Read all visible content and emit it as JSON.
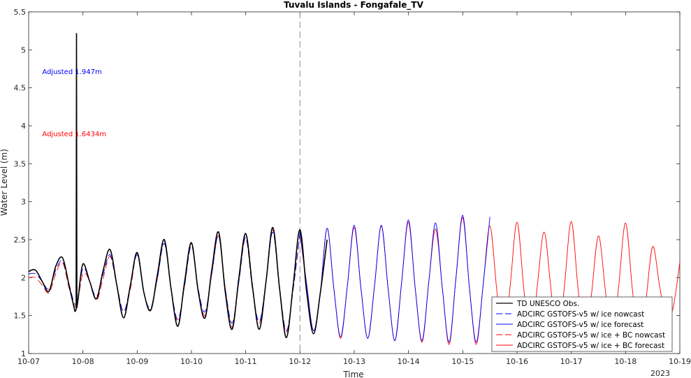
{
  "chart_data": {
    "type": "line",
    "title": "Tuvalu Islands - Fongafale_TV",
    "xlabel": "Time",
    "ylabel": "Water Level (m)",
    "year_label": "2023",
    "xlim": [
      "2023-10-07 00:00",
      "2023-10-19 00:00"
    ],
    "ylim": [
      1,
      5.5
    ],
    "x_ticks": [
      "10-07",
      "10-08",
      "10-09",
      "10-10",
      "10-11",
      "10-12",
      "10-13",
      "10-14",
      "10-15",
      "10-16",
      "10-17",
      "10-18",
      "10-19"
    ],
    "y_ticks": [
      "1",
      "1.5",
      "2",
      "2.5",
      "3",
      "3.5",
      "4",
      "4.5",
      "5",
      "5.5"
    ],
    "nowcast_forecast_boundary": "2023-10-12 00:00",
    "grid": false,
    "legend_placement": "bottom-right",
    "annotations": [
      {
        "text": "Adjusted 1.947m",
        "color": "#0000ff",
        "x": "2023-10-07 06:00",
        "y": 4.68
      },
      {
        "text": "Adjusted 1.6434m",
        "color": "#ff0000",
        "x": "2023-10-07 06:00",
        "y": 3.86
      }
    ],
    "series": [
      {
        "name": "TD UNESCO Obs.",
        "color": "#000000",
        "dash": "solid",
        "x": [
          "2023-10-07 00:00",
          "2023-10-07 03:00",
          "2023-10-07 06:00",
          "2023-10-07 09:00",
          "2023-10-07 12:00",
          "2023-10-07 15:00",
          "2023-10-07 18:00",
          "2023-10-07 20:30",
          "2023-10-07 21:00",
          "2023-10-07 21:10",
          "2023-10-07 21:20",
          "2023-10-07 22:00",
          "2023-10-08 00:00",
          "2023-10-08 03:00",
          "2023-10-08 06:00",
          "2023-10-08 09:00",
          "2023-10-08 12:00",
          "2023-10-08 15:00",
          "2023-10-08 18:00",
          "2023-10-08 21:00",
          "2023-10-09 00:00",
          "2023-10-09 03:00",
          "2023-10-09 06:00",
          "2023-10-09 09:00",
          "2023-10-09 12:00",
          "2023-10-09 15:00",
          "2023-10-09 18:00",
          "2023-10-09 21:00",
          "2023-10-10 00:00",
          "2023-10-10 03:00",
          "2023-10-10 06:00",
          "2023-10-10 09:00",
          "2023-10-10 12:00",
          "2023-10-10 15:00",
          "2023-10-10 18:00",
          "2023-10-10 21:00",
          "2023-10-11 00:00",
          "2023-10-11 03:00",
          "2023-10-11 06:00",
          "2023-10-11 09:00",
          "2023-10-11 12:00",
          "2023-10-11 15:00",
          "2023-10-11 18:00",
          "2023-10-11 21:00",
          "2023-10-12 00:00",
          "2023-10-12 03:00",
          "2023-10-12 06:00",
          "2023-10-12 09:00",
          "2023-10-12 12:00"
        ],
        "y": [
          2.08,
          2.1,
          1.95,
          1.82,
          2.15,
          2.26,
          1.88,
          1.55,
          1.58,
          5.22,
          1.6,
          1.75,
          2.18,
          1.95,
          1.72,
          2.1,
          2.37,
          1.9,
          1.47,
          1.9,
          2.33,
          1.8,
          1.57,
          2.05,
          2.5,
          1.85,
          1.36,
          1.95,
          2.46,
          1.82,
          1.47,
          2.1,
          2.6,
          1.8,
          1.32,
          2.0,
          2.58,
          1.88,
          1.32,
          1.95,
          2.66,
          1.85,
          1.21,
          1.9,
          2.63,
          1.8,
          1.26,
          1.8,
          2.5
        ]
      },
      {
        "name": "ADCIRC GSTOFS-v5 w/ ice nowcast",
        "color": "#0000ff",
        "dash": "long-dash",
        "x": [
          "2023-10-07 00:00",
          "2023-10-07 03:00",
          "2023-10-07 06:00",
          "2023-10-07 09:00",
          "2023-10-07 12:00",
          "2023-10-07 15:00",
          "2023-10-07 18:00",
          "2023-10-07 21:00",
          "2023-10-08 00:00",
          "2023-10-08 03:00",
          "2023-10-08 06:00",
          "2023-10-08 09:00",
          "2023-10-08 12:00",
          "2023-10-08 15:00",
          "2023-10-08 18:00",
          "2023-10-08 21:00",
          "2023-10-09 00:00",
          "2023-10-09 03:00",
          "2023-10-09 06:00",
          "2023-10-09 09:00",
          "2023-10-09 12:00",
          "2023-10-09 15:00",
          "2023-10-09 18:00",
          "2023-10-09 21:00",
          "2023-10-10 00:00",
          "2023-10-10 03:00",
          "2023-10-10 06:00",
          "2023-10-10 09:00",
          "2023-10-10 12:00",
          "2023-10-10 15:00",
          "2023-10-10 18:00",
          "2023-10-10 21:00",
          "2023-10-11 00:00",
          "2023-10-11 03:00",
          "2023-10-11 06:00",
          "2023-10-11 09:00",
          "2023-10-11 12:00",
          "2023-10-11 15:00",
          "2023-10-11 18:00",
          "2023-10-11 21:00",
          "2023-10-12 00:00"
        ],
        "y": [
          2.05,
          2.05,
          1.95,
          1.85,
          2.1,
          2.22,
          1.9,
          1.65,
          2.12,
          1.95,
          1.75,
          2.05,
          2.3,
          1.9,
          1.55,
          1.9,
          2.3,
          1.8,
          1.6,
          2.0,
          2.45,
          1.85,
          1.45,
          1.9,
          2.42,
          1.85,
          1.55,
          2.05,
          2.55,
          1.85,
          1.4,
          1.95,
          2.53,
          1.85,
          1.42,
          1.95,
          2.6,
          1.85,
          1.3,
          1.85,
          2.6
        ]
      },
      {
        "name": "ADCIRC GSTOFS-v5 w/ ice forecast",
        "color": "#0000ff",
        "dash": "solid",
        "x": [
          "2023-10-12 00:00",
          "2023-10-12 03:00",
          "2023-10-12 06:00",
          "2023-10-12 09:00",
          "2023-10-12 12:00",
          "2023-10-12 15:00",
          "2023-10-12 18:00",
          "2023-10-12 21:00",
          "2023-10-13 00:00",
          "2023-10-13 03:00",
          "2023-10-13 06:00",
          "2023-10-13 09:00",
          "2023-10-13 12:00",
          "2023-10-13 15:00",
          "2023-10-13 18:00",
          "2023-10-13 21:00",
          "2023-10-14 00:00",
          "2023-10-14 03:00",
          "2023-10-14 06:00",
          "2023-10-14 09:00",
          "2023-10-14 12:00",
          "2023-10-14 15:00",
          "2023-10-14 18:00",
          "2023-10-14 21:00",
          "2023-10-15 00:00",
          "2023-10-15 03:00",
          "2023-10-15 06:00",
          "2023-10-15 09:00",
          "2023-10-15 12:00"
        ],
        "y": [
          2.6,
          1.9,
          1.3,
          1.8,
          2.65,
          1.85,
          1.22,
          1.9,
          2.69,
          1.85,
          1.2,
          1.9,
          2.69,
          1.85,
          1.17,
          1.95,
          2.76,
          1.85,
          1.17,
          1.95,
          2.72,
          1.85,
          1.15,
          2.0,
          2.82,
          1.85,
          1.15,
          1.9,
          2.8
        ]
      },
      {
        "name": "ADCIRC GSTOFS-v5 w/ ice + BC nowcast",
        "color": "#ff0000",
        "dash": "long-dash",
        "x": [
          "2023-10-07 00:00",
          "2023-10-07 03:00",
          "2023-10-07 06:00",
          "2023-10-07 09:00",
          "2023-10-07 12:00",
          "2023-10-07 15:00",
          "2023-10-07 18:00",
          "2023-10-07 21:00",
          "2023-10-08 00:00",
          "2023-10-08 03:00",
          "2023-10-08 06:00",
          "2023-10-08 09:00",
          "2023-10-08 12:00",
          "2023-10-08 15:00",
          "2023-10-08 18:00",
          "2023-10-08 21:00",
          "2023-10-09 00:00",
          "2023-10-09 03:00",
          "2023-10-09 06:00",
          "2023-10-09 09:00",
          "2023-10-09 12:00",
          "2023-10-09 15:00",
          "2023-10-09 18:00",
          "2023-10-09 21:00",
          "2023-10-10 00:00",
          "2023-10-10 03:00",
          "2023-10-10 06:00",
          "2023-10-10 09:00",
          "2023-10-10 12:00",
          "2023-10-10 15:00",
          "2023-10-10 18:00",
          "2023-10-10 21:00",
          "2023-10-11 00:00",
          "2023-10-11 03:00",
          "2023-10-11 06:00",
          "2023-10-11 09:00",
          "2023-10-11 12:00",
          "2023-10-11 15:00",
          "2023-10-11 18:00",
          "2023-10-11 21:00",
          "2023-10-12 00:00"
        ],
        "y": [
          2.0,
          2.0,
          1.9,
          1.8,
          2.05,
          2.2,
          1.85,
          1.62,
          2.05,
          1.95,
          1.7,
          2.0,
          2.28,
          1.9,
          1.55,
          1.85,
          2.32,
          1.8,
          1.58,
          2.0,
          2.48,
          1.85,
          1.42,
          1.9,
          2.45,
          1.85,
          1.5,
          2.05,
          2.55,
          1.85,
          1.35,
          1.95,
          2.52,
          1.85,
          1.4,
          1.95,
          2.63,
          1.85,
          1.28,
          1.85,
          2.58
        ]
      },
      {
        "name": "ADCIRC GSTOFS-v5 w/ ice + BC forecast",
        "color": "#ff0000",
        "dash": "solid",
        "x": [
          "2023-10-12 00:00",
          "2023-10-12 03:00",
          "2023-10-12 06:00",
          "2023-10-12 09:00",
          "2023-10-12 12:00",
          "2023-10-12 15:00",
          "2023-10-12 18:00",
          "2023-10-12 21:00",
          "2023-10-13 00:00",
          "2023-10-13 03:00",
          "2023-10-13 06:00",
          "2023-10-13 09:00",
          "2023-10-13 12:00",
          "2023-10-13 15:00",
          "2023-10-13 18:00",
          "2023-10-13 21:00",
          "2023-10-14 00:00",
          "2023-10-14 03:00",
          "2023-10-14 06:00",
          "2023-10-14 09:00",
          "2023-10-14 12:00",
          "2023-10-14 15:00",
          "2023-10-14 18:00",
          "2023-10-14 21:00",
          "2023-10-15 00:00",
          "2023-10-15 03:00",
          "2023-10-15 06:00",
          "2023-10-15 09:00",
          "2023-10-15 12:00",
          "2023-10-15 15:00",
          "2023-10-15 18:00",
          "2023-10-15 21:00",
          "2023-10-16 00:00",
          "2023-10-16 03:00",
          "2023-10-16 06:00",
          "2023-10-16 09:00",
          "2023-10-16 12:00",
          "2023-10-16 15:00",
          "2023-10-16 18:00",
          "2023-10-16 21:00",
          "2023-10-17 00:00",
          "2023-10-17 03:00",
          "2023-10-17 06:00",
          "2023-10-17 09:00",
          "2023-10-17 12:00",
          "2023-10-17 15:00",
          "2023-10-17 18:00",
          "2023-10-17 21:00",
          "2023-10-18 00:00",
          "2023-10-18 03:00",
          "2023-10-18 06:00",
          "2023-10-18 09:00",
          "2023-10-18 12:00",
          "2023-10-18 15:00",
          "2023-10-18 18:00",
          "2023-10-18 21:00",
          "2023-10-19 00:00"
        ],
        "y": [
          2.58,
          1.9,
          1.3,
          1.8,
          2.65,
          1.85,
          1.2,
          1.9,
          2.66,
          1.85,
          1.2,
          1.9,
          2.68,
          1.85,
          1.17,
          1.95,
          2.73,
          1.85,
          1.15,
          1.95,
          2.64,
          1.85,
          1.12,
          2.0,
          2.79,
          1.85,
          1.12,
          1.9,
          2.68,
          1.85,
          1.1,
          1.9,
          2.73,
          1.85,
          1.1,
          1.9,
          2.6,
          1.85,
          1.1,
          1.9,
          2.74,
          1.85,
          1.1,
          1.8,
          2.55,
          1.85,
          1.1,
          1.9,
          2.72,
          1.85,
          1.1,
          1.7,
          2.41,
          1.9,
          1.45,
          1.6,
          2.2
        ]
      }
    ]
  }
}
